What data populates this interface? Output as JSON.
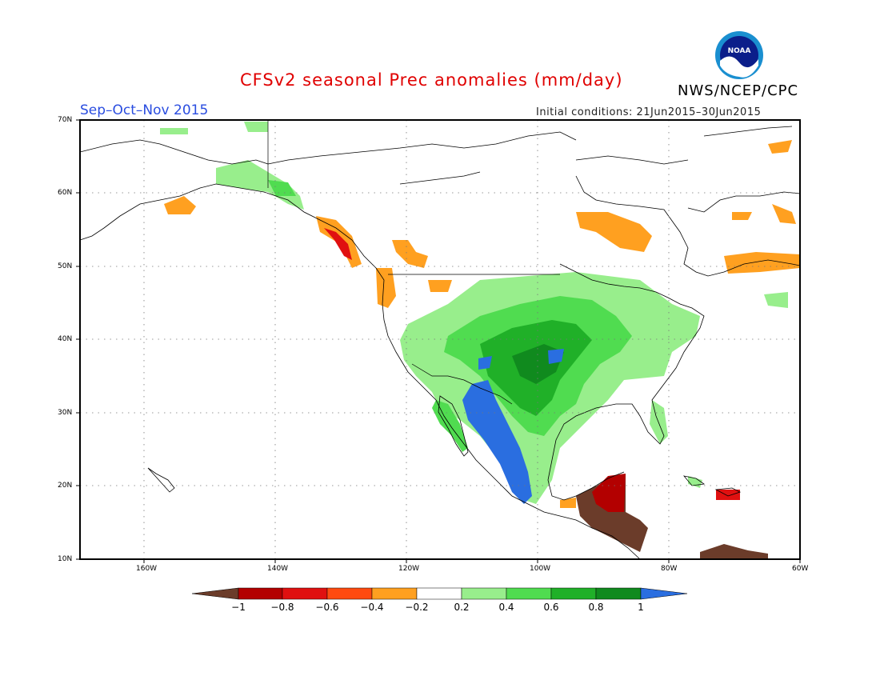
{
  "title": "CFSv2 seasonal Prec anomalies (mm/day)",
  "organization": "NWS/NCEP/CPC",
  "logo_text": "NOAA",
  "season": "Sep–Oct–Nov 2015",
  "initial_conditions": "Initial conditions: 21Jun2015–30Jun2015",
  "latitude_labels": [
    "70N",
    "60N",
    "50N",
    "40N",
    "30N",
    "20N",
    "10N"
  ],
  "longitude_labels": [
    "160W",
    "140W",
    "120W",
    "100W",
    "80W",
    "60W"
  ],
  "colorbar": {
    "labels": [
      "−1",
      "−0.8",
      "−0.6",
      "−0.4",
      "−0.2",
      "0.2",
      "0.4",
      "0.6",
      "0.8",
      "1"
    ],
    "colors": [
      "#6b3c2a",
      "#b30000",
      "#e01010",
      "#ff4a10",
      "#ffa020",
      "#ffffff",
      "#98ee8c",
      "#50dc50",
      "#20b028",
      "#108a1e",
      "#2a6ee0"
    ]
  },
  "anomaly_regions": [
    {
      "name": "us-west-wet",
      "color": "#98ee8c"
    },
    {
      "name": "plains-wet",
      "color": "#50dc50"
    },
    {
      "name": "mexico-wet-strong",
      "color": "#2a6ee0"
    },
    {
      "name": "central-america-dry",
      "color": "#6b3c2a"
    },
    {
      "name": "pacific-northwest-dry",
      "color": "#ffa020"
    },
    {
      "name": "canada-dry",
      "color": "#ffa020"
    }
  ]
}
